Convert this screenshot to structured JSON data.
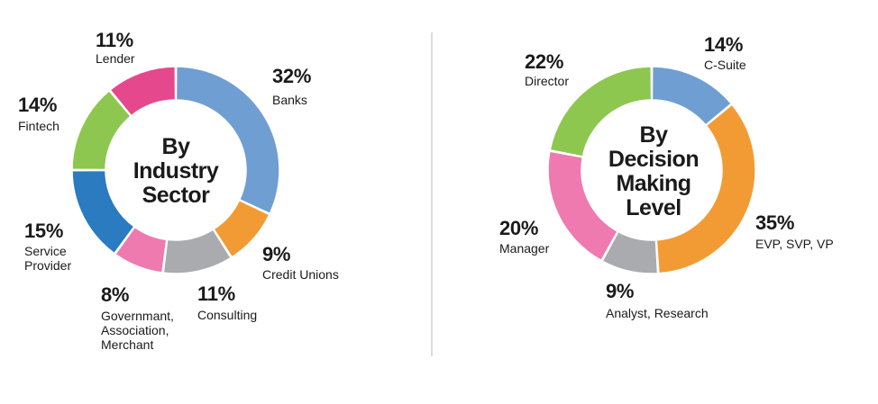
{
  "chart_data": [
    {
      "type": "pie",
      "style": "donut",
      "title": "By\nIndustry\nSector",
      "slices": [
        {
          "label": "Banks",
          "value": 32,
          "pct_text": "32%",
          "color": "#6f9ed2"
        },
        {
          "label": "Credit Unions",
          "value": 9,
          "pct_text": "9%",
          "color": "#f29b34"
        },
        {
          "label": "Consulting",
          "value": 11,
          "pct_text": "11%",
          "color": "#a9abae"
        },
        {
          "label": "Governmant,\nAssociation,\nMerchant",
          "value": 8,
          "pct_text": "8%",
          "color": "#ee7ab0"
        },
        {
          "label": "Service\nProvider",
          "value": 15,
          "pct_text": "15%",
          "color": "#2a7bbf"
        },
        {
          "label": "Fintech",
          "value": 14,
          "pct_text": "14%",
          "color": "#8dc750"
        },
        {
          "label": "Lender",
          "value": 11,
          "pct_text": "11%",
          "color": "#e5488d"
        }
      ]
    },
    {
      "type": "pie",
      "style": "donut",
      "title": "By\nDecision\nMaking\nLevel",
      "slices": [
        {
          "label": "C-Suite",
          "value": 14,
          "pct_text": "14%",
          "color": "#6f9ed2"
        },
        {
          "label": "EVP, SVP, VP",
          "value": 35,
          "pct_text": "35%",
          "color": "#f29b34"
        },
        {
          "label": "Analyst, Research",
          "value": 9,
          "pct_text": "9%",
          "color": "#a9abae"
        },
        {
          "label": "Manager",
          "value": 20,
          "pct_text": "20%",
          "color": "#ee7ab0"
        },
        {
          "label": "Director",
          "value": 22,
          "pct_text": "22%",
          "color": "#8dc750"
        }
      ]
    }
  ]
}
